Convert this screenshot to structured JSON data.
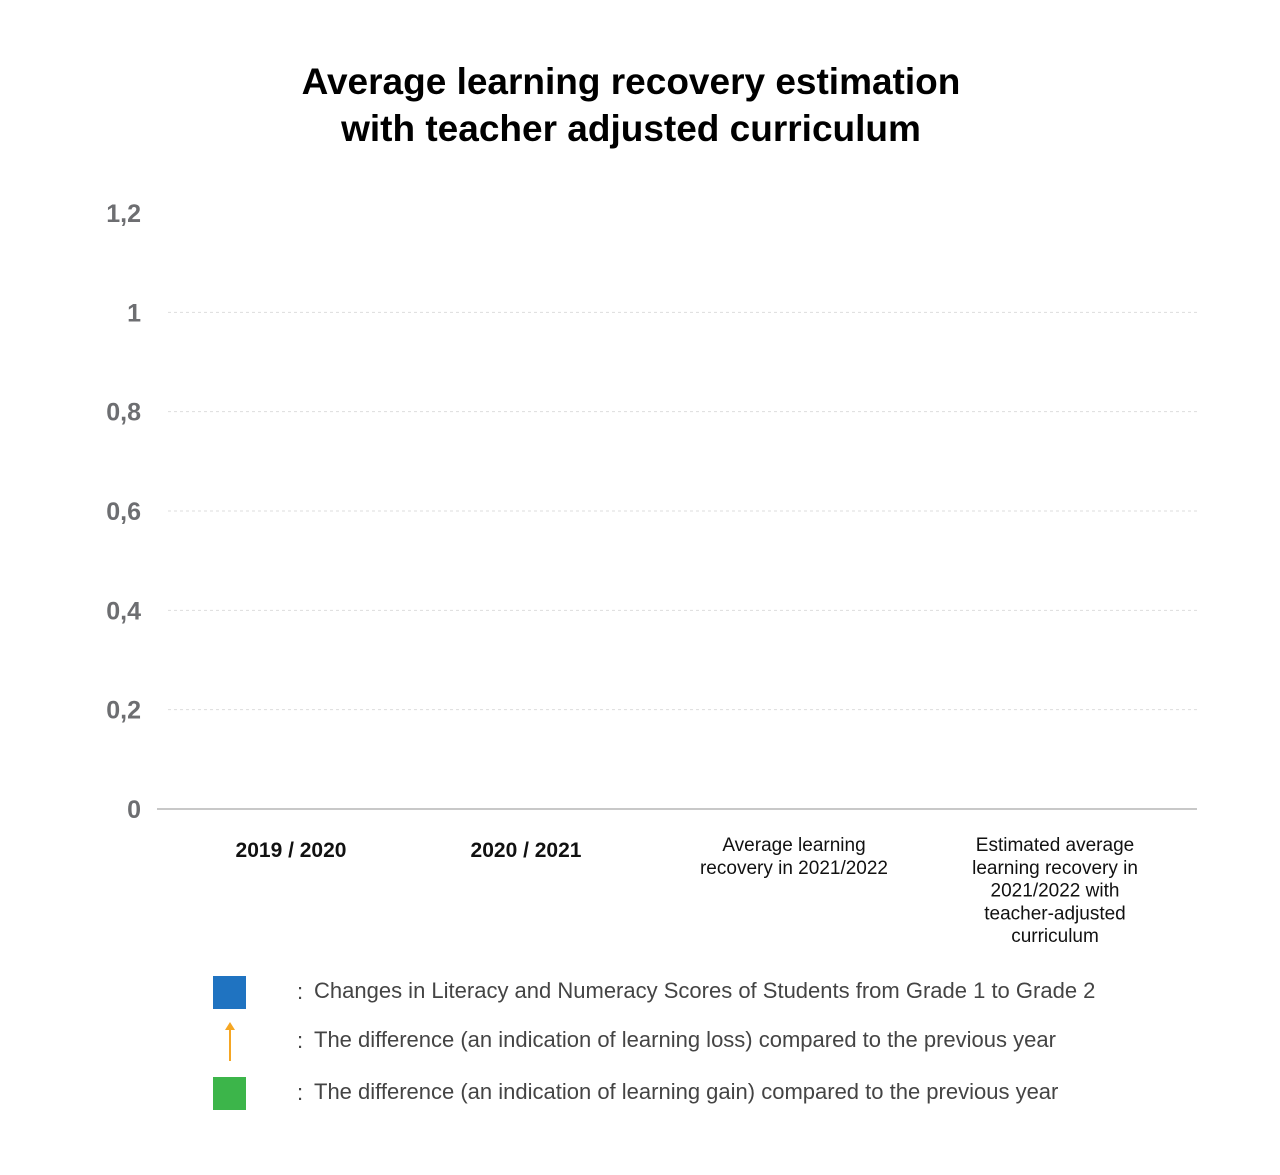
{
  "chart_data": {
    "type": "bar",
    "title_lines": [
      "Average learning recovery estimation",
      "with teacher adjusted curriculum"
    ],
    "title": "Average learning recovery estimation with teacher adjusted curriculum",
    "xlabel": "",
    "ylabel": "",
    "ylim": [
      0,
      1.2
    ],
    "yticks": [
      "0",
      "0,2",
      "0,4",
      "0,6",
      "0,8",
      "1",
      "1,2"
    ],
    "grid": true,
    "categories": [
      {
        "label_lines": [
          "2019 / 2020"
        ],
        "bold": true
      },
      {
        "label_lines": [
          "2020 / 2021"
        ],
        "bold": true
      },
      {
        "label_lines": [
          "Average learning",
          "recovery in 2021/2022"
        ],
        "bold": false
      },
      {
        "label_lines": [
          "Estimated average",
          "learning recovery in",
          "2021/2022 with",
          "teacher-adjusted",
          "curriculum"
        ],
        "bold": false
      }
    ],
    "series": [],
    "legend": [
      {
        "marker": "square",
        "color": "#1f73c1",
        "label": "Changes in Literacy and Numeracy Scores of Students from Grade 1 to Grade 2"
      },
      {
        "marker": "arrow",
        "color": "#f5a623",
        "label": "The difference (an indication of learning loss) compared to the previous year"
      },
      {
        "marker": "square",
        "color": "#3cb54a",
        "label": "The difference (an indication of learning gain) compared to the previous year"
      }
    ],
    "legend_separator": ":",
    "legend_placement": "bottom"
  }
}
